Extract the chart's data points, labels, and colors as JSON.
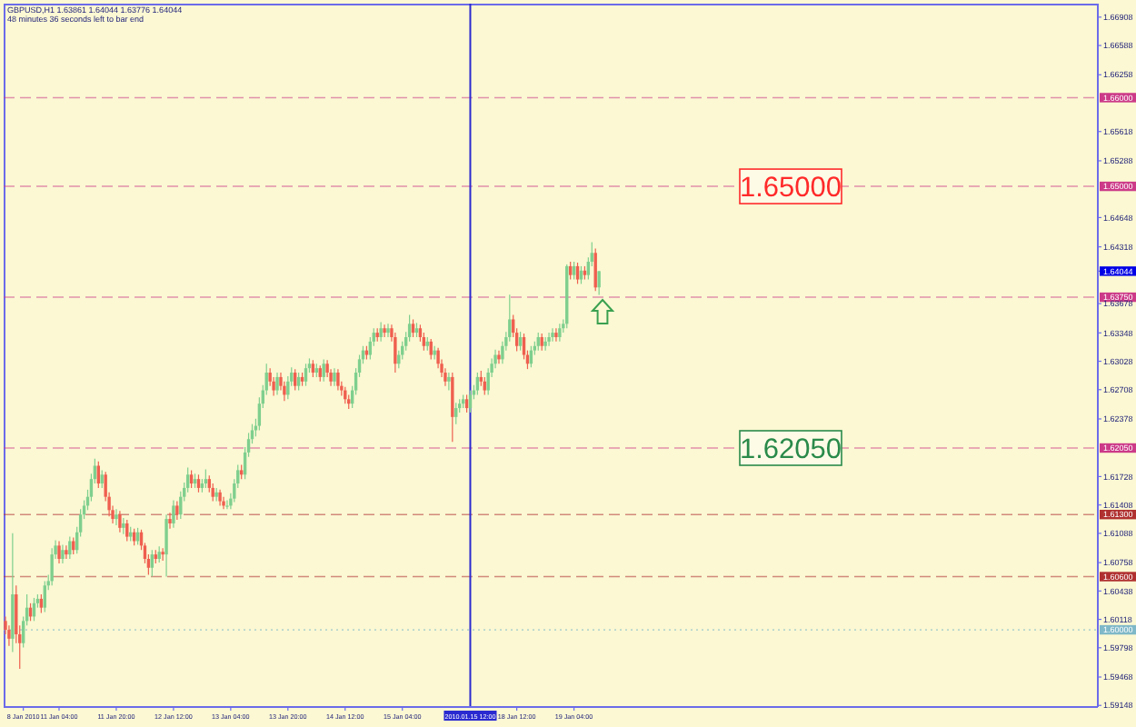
{
  "chart_data": {
    "type": "candlestick",
    "title": "GBPUSD,H1 1.63861 1.64044 1.63776 1.64044",
    "subtitle": "48 minutes 36 seconds left to bar end",
    "categories": [
      null,
      null,
      null,
      null,
      null,
      "8 Jan 2010",
      null,
      null,
      null,
      null,
      null,
      null,
      null,
      null,
      null,
      "11 Jan 04:00",
      null,
      null,
      null,
      null,
      null,
      null,
      null,
      null,
      null,
      null,
      null,
      null,
      null,
      null,
      null,
      "11 Jan 20:00",
      null,
      null,
      null,
      null,
      null,
      null,
      null,
      null,
      null,
      null,
      null,
      null,
      null,
      null,
      null,
      "12 Jan 12:00",
      null,
      null,
      null,
      null,
      null,
      null,
      null,
      null,
      null,
      null,
      null,
      null,
      null,
      null,
      null,
      "13 Jan 04:00",
      null,
      null,
      null,
      null,
      null,
      null,
      null,
      null,
      null,
      null,
      null,
      null,
      null,
      null,
      null,
      "13 Jan 20:00",
      null,
      null,
      null,
      null,
      null,
      null,
      null,
      null,
      null,
      null,
      null,
      null,
      null,
      null,
      null,
      "14 Jan 12:00",
      null,
      null,
      null,
      null,
      null,
      null,
      null,
      null,
      null,
      null,
      null,
      null,
      null,
      null,
      null,
      "15 Jan 04:00",
      null,
      null,
      null,
      null,
      null,
      null,
      null,
      null,
      null,
      null,
      null,
      null,
      null,
      null,
      null,
      null,
      null,
      null,
      "2010.01.15 12:00",
      null,
      null,
      null,
      null,
      null,
      null,
      null,
      null,
      null,
      null,
      null,
      null,
      "18 Jan 12:00",
      null,
      null,
      null,
      null,
      null,
      null,
      null,
      null,
      null,
      null,
      null,
      null,
      null,
      null,
      null,
      "19 Jan 04:00",
      null,
      null,
      null,
      null,
      null,
      null,
      null,
      null,
      null,
      null,
      null,
      null,
      null,
      null,
      null,
      null,
      null,
      null,
      null,
      null,
      null,
      null,
      null,
      null,
      null,
      null,
      null,
      null,
      null,
      null,
      null,
      null,
      null,
      null,
      null,
      null,
      null,
      null,
      null,
      null,
      null,
      null,
      null,
      null,
      null,
      null,
      null,
      null,
      null,
      null,
      null,
      null,
      null,
      null,
      null,
      null,
      null,
      null,
      null,
      null,
      null,
      null,
      null,
      null,
      null,
      null,
      null,
      null,
      null,
      null,
      null,
      null,
      null,
      null,
      null,
      null,
      null,
      null,
      null,
      null,
      null,
      null,
      null,
      null,
      null,
      null,
      null,
      null,
      null,
      null,
      null,
      null,
      null,
      null,
      null,
      null,
      null,
      null,
      null,
      null,
      null,
      null,
      null,
      null,
      null,
      null,
      null,
      null,
      null,
      null,
      null,
      null,
      null,
      null,
      null,
      null,
      null,
      null,
      null,
      null,
      null,
      null,
      null,
      null,
      null,
      null,
      null,
      null,
      null,
      null,
      null,
      null,
      null,
      null,
      null,
      null,
      null,
      null,
      null,
      null,
      null,
      null,
      null,
      null,
      null,
      null
    ],
    "ohlc": [
      [
        1.601,
        1.6015,
        1.5995,
        1.6
      ],
      [
        1.6,
        1.6005,
        1.5982,
        1.599
      ],
      [
        1.599,
        1.6109,
        1.5975,
        1.604
      ],
      [
        1.604,
        1.605,
        1.5985,
        1.5995
      ],
      [
        1.5995,
        1.6005,
        1.5956,
        1.5985
      ],
      [
        1.5985,
        1.6015,
        1.598,
        1.601
      ],
      [
        1.601,
        1.604,
        1.6005,
        1.6025
      ],
      [
        1.6025,
        1.603,
        1.601,
        1.6015
      ],
      [
        1.6015,
        1.6036,
        1.601,
        1.603
      ],
      [
        1.603,
        1.604,
        1.6025,
        1.6035
      ],
      [
        1.6035,
        1.604,
        1.6019,
        1.6025
      ],
      [
        1.6025,
        1.6055,
        1.602,
        1.605
      ],
      [
        1.605,
        1.6062,
        1.6045,
        1.6055
      ],
      [
        1.6055,
        1.6092,
        1.605,
        1.6085
      ],
      [
        1.6085,
        1.6101,
        1.608,
        1.6095
      ],
      [
        1.6095,
        1.61,
        1.6075,
        1.608
      ],
      [
        1.608,
        1.6096,
        1.6075,
        1.609
      ],
      [
        1.609,
        1.6095,
        1.608,
        1.6085
      ],
      [
        1.6085,
        1.6105,
        1.608,
        1.61
      ],
      [
        1.61,
        1.6104,
        1.6085,
        1.609
      ],
      [
        1.609,
        1.6116,
        1.6086,
        1.611
      ],
      [
        1.611,
        1.6136,
        1.6105,
        1.613
      ],
      [
        1.613,
        1.6146,
        1.6125,
        1.614
      ],
      [
        1.614,
        1.6158,
        1.6135,
        1.615
      ],
      [
        1.615,
        1.6176,
        1.6145,
        1.617
      ],
      [
        1.617,
        1.6193,
        1.6165,
        1.6185
      ],
      [
        1.6185,
        1.619,
        1.616,
        1.6165
      ],
      [
        1.6165,
        1.618,
        1.616,
        1.6175
      ],
      [
        1.6175,
        1.6178,
        1.6145,
        1.615
      ],
      [
        1.615,
        1.6155,
        1.6128,
        1.6135
      ],
      [
        1.6135,
        1.614,
        1.612,
        1.6125
      ],
      [
        1.6125,
        1.6136,
        1.6118,
        1.613
      ],
      [
        1.613,
        1.6134,
        1.611,
        1.6115
      ],
      [
        1.6115,
        1.6126,
        1.6108,
        1.612
      ],
      [
        1.612,
        1.6124,
        1.61,
        1.6105
      ],
      [
        1.6105,
        1.6116,
        1.61,
        1.611
      ],
      [
        1.611,
        1.6114,
        1.6095,
        1.61
      ],
      [
        1.61,
        1.6115,
        1.6096,
        1.611
      ],
      [
        1.611,
        1.6113,
        1.609,
        1.6095
      ],
      [
        1.6095,
        1.6098,
        1.6075,
        1.608
      ],
      [
        1.608,
        1.6085,
        1.6062,
        1.607
      ],
      [
        1.607,
        1.609,
        1.606,
        1.6085
      ],
      [
        1.6085,
        1.609,
        1.6075,
        1.608
      ],
      [
        1.608,
        1.6094,
        1.6076,
        1.6088
      ],
      [
        1.6088,
        1.6092,
        1.6078,
        1.6085
      ],
      [
        1.6085,
        1.613,
        1.606,
        1.6125
      ],
      [
        1.6125,
        1.6132,
        1.6114,
        1.612
      ],
      [
        1.612,
        1.6146,
        1.6115,
        1.614
      ],
      [
        1.614,
        1.6145,
        1.6124,
        1.613
      ],
      [
        1.613,
        1.6156,
        1.6125,
        1.615
      ],
      [
        1.615,
        1.6166,
        1.6145,
        1.616
      ],
      [
        1.616,
        1.6183,
        1.6155,
        1.6175
      ],
      [
        1.6175,
        1.618,
        1.616,
        1.6165
      ],
      [
        1.6165,
        1.6176,
        1.616,
        1.617
      ],
      [
        1.617,
        1.6175,
        1.6155,
        1.616
      ],
      [
        1.616,
        1.617,
        1.6155,
        1.6165
      ],
      [
        1.6165,
        1.6181,
        1.616,
        1.617
      ],
      [
        1.617,
        1.6174,
        1.6155,
        1.616
      ],
      [
        1.616,
        1.6165,
        1.6145,
        1.615
      ],
      [
        1.615,
        1.616,
        1.6145,
        1.6155
      ],
      [
        1.6155,
        1.6158,
        1.614,
        1.6145
      ],
      [
        1.6145,
        1.615,
        1.6136,
        1.614
      ],
      [
        1.614,
        1.6146,
        1.6136,
        1.614
      ],
      [
        1.614,
        1.6154,
        1.6136,
        1.6148
      ],
      [
        1.6148,
        1.617,
        1.6144,
        1.6165
      ],
      [
        1.6165,
        1.6186,
        1.616,
        1.618
      ],
      [
        1.618,
        1.6186,
        1.617,
        1.6175
      ],
      [
        1.6175,
        1.6206,
        1.617,
        1.62
      ],
      [
        1.62,
        1.6222,
        1.6195,
        1.6215
      ],
      [
        1.6215,
        1.6232,
        1.621,
        1.6225
      ],
      [
        1.6225,
        1.6238,
        1.6218,
        1.623
      ],
      [
        1.623,
        1.6262,
        1.6225,
        1.6255
      ],
      [
        1.6255,
        1.6276,
        1.625,
        1.627
      ],
      [
        1.627,
        1.63,
        1.6265,
        1.629
      ],
      [
        1.629,
        1.6295,
        1.6275,
        1.628
      ],
      [
        1.628,
        1.6285,
        1.6264,
        1.627
      ],
      [
        1.627,
        1.629,
        1.6265,
        1.6285
      ],
      [
        1.6285,
        1.629,
        1.627,
        1.6275
      ],
      [
        1.6275,
        1.628,
        1.6258,
        1.6265
      ],
      [
        1.6265,
        1.6286,
        1.626,
        1.628
      ],
      [
        1.628,
        1.6296,
        1.6275,
        1.629
      ],
      [
        1.629,
        1.6294,
        1.627,
        1.6275
      ],
      [
        1.6275,
        1.629,
        1.627,
        1.6285
      ],
      [
        1.6285,
        1.629,
        1.6275,
        1.628
      ],
      [
        1.628,
        1.63,
        1.6275,
        1.6295
      ],
      [
        1.6295,
        1.6306,
        1.629,
        1.63
      ],
      [
        1.63,
        1.6304,
        1.6285,
        1.629
      ],
      [
        1.629,
        1.63,
        1.6285,
        1.6295
      ],
      [
        1.6295,
        1.6298,
        1.628,
        1.6285
      ],
      [
        1.6285,
        1.6305,
        1.628,
        1.63
      ],
      [
        1.63,
        1.6304,
        1.6285,
        1.629
      ],
      [
        1.629,
        1.6294,
        1.6275,
        1.628
      ],
      [
        1.628,
        1.6295,
        1.6275,
        1.629
      ],
      [
        1.629,
        1.6294,
        1.627,
        1.6275
      ],
      [
        1.6275,
        1.628,
        1.6264,
        1.627
      ],
      [
        1.627,
        1.6274,
        1.6255,
        1.626
      ],
      [
        1.626,
        1.6265,
        1.6249,
        1.6255
      ],
      [
        1.6255,
        1.6275,
        1.625,
        1.627
      ],
      [
        1.627,
        1.6295,
        1.6265,
        1.629
      ],
      [
        1.629,
        1.631,
        1.6285,
        1.6305
      ],
      [
        1.6305,
        1.632,
        1.63,
        1.6315
      ],
      [
        1.6315,
        1.632,
        1.6305,
        1.631
      ],
      [
        1.631,
        1.633,
        1.6305,
        1.6325
      ],
      [
        1.6325,
        1.634,
        1.632,
        1.6335
      ],
      [
        1.6335,
        1.634,
        1.6325,
        1.633
      ],
      [
        1.633,
        1.6347,
        1.6325,
        1.634
      ],
      [
        1.634,
        1.6344,
        1.633,
        1.6335
      ],
      [
        1.6335,
        1.6345,
        1.633,
        1.634
      ],
      [
        1.634,
        1.6344,
        1.6325,
        1.633
      ],
      [
        1.633,
        1.6335,
        1.629,
        1.63
      ],
      [
        1.63,
        1.6315,
        1.6295,
        1.631
      ],
      [
        1.631,
        1.6325,
        1.6305,
        1.632
      ],
      [
        1.632,
        1.6336,
        1.6315,
        1.633
      ],
      [
        1.633,
        1.6355,
        1.6325,
        1.6345
      ],
      [
        1.6345,
        1.635,
        1.633,
        1.6335
      ],
      [
        1.6335,
        1.6346,
        1.633,
        1.634
      ],
      [
        1.634,
        1.6344,
        1.6325,
        1.633
      ],
      [
        1.633,
        1.6335,
        1.6315,
        1.632
      ],
      [
        1.632,
        1.633,
        1.6315,
        1.6325
      ],
      [
        1.6325,
        1.6328,
        1.6305,
        1.631
      ],
      [
        1.631,
        1.632,
        1.6305,
        1.6315
      ],
      [
        1.6315,
        1.6318,
        1.6295,
        1.63
      ],
      [
        1.63,
        1.6305,
        1.6285,
        1.629
      ],
      [
        1.629,
        1.6295,
        1.6275,
        1.628
      ],
      [
        1.628,
        1.629,
        1.627,
        1.6285
      ],
      [
        1.6285,
        1.629,
        1.6212,
        1.624
      ],
      [
        1.624,
        1.6256,
        1.6232,
        1.625
      ],
      [
        1.625,
        1.626,
        1.6245,
        1.6255
      ],
      [
        1.6255,
        1.6265,
        1.625,
        1.626
      ],
      [
        1.626,
        1.6265,
        1.6245,
        1.625
      ],
      [
        1.625,
        1.627,
        1.6245,
        1.6265
      ],
      [
        1.6265,
        1.6276,
        1.626,
        1.627
      ],
      [
        1.627,
        1.629,
        1.6265,
        1.6285
      ],
      [
        1.6285,
        1.6292,
        1.6275,
        1.628
      ],
      [
        1.628,
        1.6285,
        1.6265,
        1.627
      ],
      [
        1.627,
        1.6295,
        1.6265,
        1.629
      ],
      [
        1.629,
        1.6306,
        1.6285,
        1.63
      ],
      [
        1.63,
        1.6316,
        1.6295,
        1.631
      ],
      [
        1.631,
        1.6315,
        1.63,
        1.6305
      ],
      [
        1.6305,
        1.6325,
        1.63,
        1.632
      ],
      [
        1.632,
        1.6336,
        1.6315,
        1.633
      ],
      [
        1.633,
        1.6378,
        1.6325,
        1.635
      ],
      [
        1.635,
        1.6355,
        1.633,
        1.6335
      ],
      [
        1.6335,
        1.634,
        1.6314,
        1.632
      ],
      [
        1.632,
        1.6336,
        1.6315,
        1.633
      ],
      [
        1.633,
        1.6334,
        1.6305,
        1.631
      ],
      [
        1.631,
        1.6315,
        1.6294,
        1.63
      ],
      [
        1.63,
        1.632,
        1.6296,
        1.6315
      ],
      [
        1.6315,
        1.6325,
        1.631,
        1.632
      ],
      [
        1.632,
        1.6335,
        1.6315,
        1.633
      ],
      [
        1.633,
        1.6334,
        1.6315,
        1.632
      ],
      [
        1.632,
        1.633,
        1.6315,
        1.6325
      ],
      [
        1.6325,
        1.6335,
        1.632,
        1.633
      ],
      [
        1.633,
        1.634,
        1.6325,
        1.6335
      ],
      [
        1.6335,
        1.634,
        1.6325,
        1.633
      ],
      [
        1.633,
        1.6345,
        1.6325,
        1.634
      ],
      [
        1.634,
        1.635,
        1.6335,
        1.6345
      ],
      [
        1.6345,
        1.6412,
        1.634,
        1.641
      ],
      [
        1.641,
        1.6415,
        1.6395,
        1.64
      ],
      [
        1.64,
        1.6415,
        1.6395,
        1.641
      ],
      [
        1.641,
        1.6414,
        1.639,
        1.6395
      ],
      [
        1.6395,
        1.641,
        1.639,
        1.6405
      ],
      [
        1.6405,
        1.641,
        1.6395,
        1.64
      ],
      [
        1.64,
        1.642,
        1.6395,
        1.6415
      ],
      [
        1.6415,
        1.6437,
        1.641,
        1.6425
      ],
      [
        1.6425,
        1.643,
        1.6382,
        1.6386
      ],
      [
        1.63861,
        1.64044,
        1.63776,
        1.64044
      ],
      null,
      null,
      null,
      null,
      null,
      null,
      null,
      null,
      null,
      null,
      null,
      null,
      null,
      null,
      null,
      null,
      null,
      null,
      null,
      null,
      null,
      null,
      null,
      null,
      null,
      null,
      null,
      null,
      null,
      null,
      null,
      null,
      null,
      null,
      null,
      null,
      null,
      null,
      null,
      null,
      null,
      null,
      null,
      null,
      null,
      null,
      null,
      null,
      null,
      null,
      null,
      null,
      null,
      null,
      null,
      null,
      null,
      null,
      null,
      null,
      null,
      null,
      null,
      null,
      null,
      null,
      null,
      null,
      null,
      null,
      null,
      null,
      null,
      null,
      null,
      null,
      null,
      null,
      null,
      null,
      null,
      null,
      null,
      null,
      null,
      null,
      null,
      null,
      null,
      null,
      null,
      null,
      null,
      null,
      null,
      null,
      null,
      null,
      null,
      null,
      null,
      null,
      null,
      null,
      null,
      null,
      null,
      null,
      null,
      null,
      null,
      null,
      null,
      null,
      null,
      null,
      null,
      null,
      null,
      null,
      null,
      null,
      null,
      null,
      null,
      null,
      null,
      null,
      null,
      null,
      null,
      null,
      null,
      null,
      null,
      null,
      null,
      null,
      null
    ],
    "colors": [
      "#ef5f4f",
      "#ef5f4f",
      "#7fcf8e",
      "#ef5f4f",
      "#ef5f4f",
      "#7fcf8e",
      "#7fcf8e",
      "#ef5f4f",
      "#7fcf8e",
      "#7fcf8e",
      "#ef5f4f",
      "#7fcf8e",
      "#7fcf8e",
      "#7fcf8e",
      "#7fcf8e",
      "#ef5f4f",
      "#7fcf8e",
      "#ef5f4f",
      "#7fcf8e",
      "#ef5f4f",
      "#7fcf8e",
      "#7fcf8e",
      "#7fcf8e",
      "#7fcf8e",
      "#7fcf8e",
      "#7fcf8e",
      "#ef5f4f",
      "#7fcf8e",
      "#ef5f4f",
      "#ef5f4f",
      "#ef5f4f",
      "#7fcf8e",
      "#ef5f4f",
      "#7fcf8e",
      "#ef5f4f",
      "#7fcf8e",
      "#ef5f4f",
      "#7fcf8e",
      "#ef5f4f",
      "#ef5f4f",
      "#ef5f4f",
      "#7fcf8e",
      "#ef5f4f",
      "#7fcf8e",
      "#ef5f4f",
      "#7fcf8e",
      "#ef5f4f",
      "#7fcf8e",
      "#ef5f4f",
      "#7fcf8e",
      "#7fcf8e",
      "#7fcf8e",
      "#ef5f4f",
      "#7fcf8e",
      "#ef5f4f",
      "#7fcf8e",
      "#7fcf8e",
      "#ef5f4f",
      "#ef5f4f",
      "#7fcf8e",
      "#ef5f4f",
      "#ef5f4f",
      "#7fcf8e",
      "#7fcf8e",
      "#7fcf8e",
      "#7fcf8e",
      "#ef5f4f",
      "#7fcf8e",
      "#7fcf8e",
      "#7fcf8e",
      "#7fcf8e",
      "#7fcf8e",
      "#7fcf8e",
      "#7fcf8e",
      "#ef5f4f",
      "#ef5f4f",
      "#7fcf8e",
      "#ef5f4f",
      "#ef5f4f",
      "#7fcf8e",
      "#7fcf8e",
      "#ef5f4f",
      "#7fcf8e",
      "#ef5f4f",
      "#7fcf8e",
      "#7fcf8e",
      "#ef5f4f",
      "#7fcf8e",
      "#ef5f4f",
      "#7fcf8e",
      "#ef5f4f",
      "#ef5f4f",
      "#7fcf8e",
      "#ef5f4f",
      "#ef5f4f",
      "#ef5f4f",
      "#ef5f4f",
      "#7fcf8e",
      "#7fcf8e",
      "#7fcf8e",
      "#7fcf8e",
      "#ef5f4f",
      "#7fcf8e",
      "#7fcf8e",
      "#ef5f4f",
      "#7fcf8e",
      "#ef5f4f",
      "#7fcf8e",
      "#ef5f4f",
      "#ef5f4f",
      "#7fcf8e",
      "#7fcf8e",
      "#7fcf8e",
      "#7fcf8e",
      "#ef5f4f",
      "#7fcf8e",
      "#ef5f4f",
      "#ef5f4f",
      "#7fcf8e",
      "#ef5f4f",
      "#7fcf8e",
      "#ef5f4f",
      "#ef5f4f",
      "#ef5f4f",
      "#7fcf8e",
      "#ef5f4f",
      "#7fcf8e",
      "#7fcf8e",
      "#7fcf8e",
      "#ef5f4f",
      "#7fcf8e",
      "#7fcf8e",
      "#7fcf8e",
      "#ef5f4f",
      "#ef5f4f",
      "#7fcf8e",
      "#7fcf8e",
      "#7fcf8e",
      "#ef5f4f",
      "#7fcf8e",
      "#7fcf8e",
      "#7fcf8e",
      "#ef5f4f",
      "#ef5f4f",
      "#7fcf8e",
      "#ef5f4f",
      "#ef5f4f",
      "#7fcf8e",
      "#7fcf8e",
      "#7fcf8e",
      "#ef5f4f",
      "#7fcf8e",
      "#7fcf8e",
      "#7fcf8e",
      "#ef5f4f",
      "#7fcf8e",
      "#7fcf8e",
      "#7fcf8e",
      "#ef5f4f",
      "#7fcf8e",
      "#ef5f4f",
      "#7fcf8e",
      "#ef5f4f",
      "#7fcf8e",
      "#7fcf8e",
      "#ef5f4f",
      "#7fcf8e",
      null,
      null,
      null,
      null,
      null,
      null,
      null,
      null,
      null,
      null,
      null,
      null,
      null,
      null,
      null,
      null,
      null,
      null,
      null,
      null,
      null,
      null,
      null,
      null,
      null,
      null,
      null,
      null,
      null,
      null,
      null,
      null,
      null,
      null,
      null,
      null,
      null,
      null,
      null,
      null,
      null,
      null,
      null,
      null,
      null,
      null,
      null,
      null,
      null,
      null,
      null,
      null,
      null,
      null,
      null,
      null,
      null,
      null,
      null,
      null,
      null,
      null,
      null,
      null,
      null,
      null,
      null,
      null,
      null,
      null,
      null,
      null,
      null,
      null,
      null,
      null,
      null,
      null,
      null,
      null,
      null,
      null,
      null,
      null,
      null,
      null,
      null,
      null,
      null,
      null,
      null,
      null,
      null,
      null,
      null,
      null,
      null,
      null,
      null,
      null,
      null,
      null,
      null,
      null,
      null,
      null,
      null,
      null,
      null,
      null,
      null,
      null,
      null,
      null,
      null,
      null,
      null,
      null,
      null,
      null,
      null,
      null,
      null,
      null,
      null,
      null,
      null,
      null,
      null,
      null,
      null,
      null,
      null,
      null,
      null,
      null,
      null,
      null,
      null
    ],
    "ylim": [
      1.5913,
      1.6706
    ],
    "yticks": [
      1.59148,
      1.59468,
      1.59798,
      1.60118,
      1.60438,
      1.60758,
      1.61088,
      1.61408,
      1.61728,
      1.62378,
      1.62708,
      1.63028,
      1.63348,
      1.63678,
      1.64044,
      1.64318,
      1.64648,
      1.65288,
      1.65618,
      1.66258,
      1.66588,
      1.66908
    ],
    "ref_lines": [
      {
        "axis": "y",
        "value": 1.66,
        "label": "1.66000",
        "color": "#cc3a88",
        "line_style": "dashed"
      },
      {
        "axis": "y",
        "value": 1.65,
        "label": "1.65000",
        "color": "#cc3a88",
        "line_style": "dashed"
      },
      {
        "axis": "y",
        "value": 1.6375,
        "label": "1.63750",
        "color": "#cc3a88",
        "line_style": "dashed"
      },
      {
        "axis": "y",
        "value": 1.6205,
        "label": "1.62050",
        "color": "#cc3a88",
        "line_style": "dashed"
      },
      {
        "axis": "y",
        "value": 1.613,
        "label": "1.61300",
        "color": "#b03030",
        "line_style": "dashed"
      },
      {
        "axis": "y",
        "value": 1.606,
        "label": "1.60600",
        "color": "#b03030",
        "line_style": "dashed"
      },
      {
        "axis": "y",
        "value": 1.6,
        "label": "1.60000",
        "color": "#7fb8c8",
        "line_style": "dotted"
      },
      {
        "axis": "x",
        "value": "2010.01.15 12:00",
        "color": "#2a2ad0",
        "line_style": "solid"
      }
    ],
    "annotations": [
      {
        "text": "1.65000",
        "y": 1.65
      },
      {
        "text": "1.62050",
        "y": 1.6205
      }
    ]
  }
}
